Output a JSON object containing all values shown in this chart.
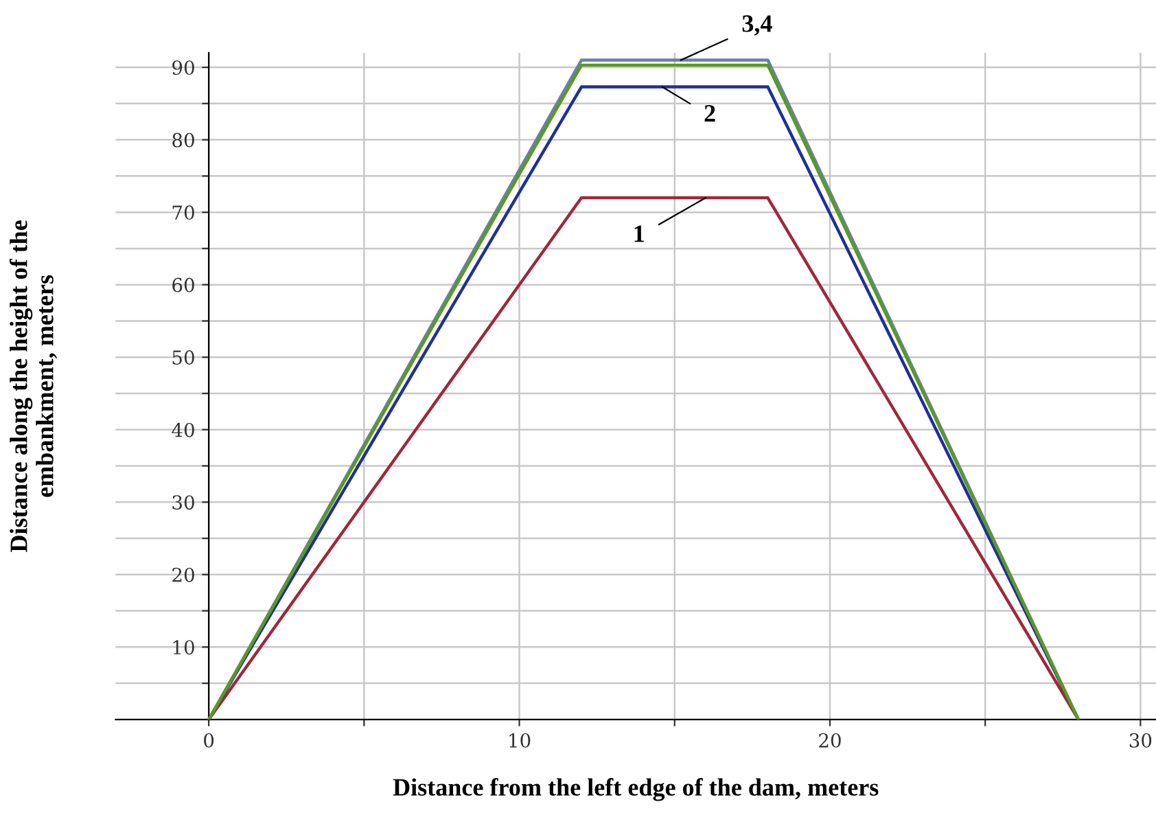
{
  "chart_data": {
    "type": "line",
    "xlabel": "Distance from the left edge of the dam, meters",
    "ylabel": "Distance along the height of the\nembankment, meters",
    "x": [
      0,
      12,
      18,
      28
    ],
    "series": [
      {
        "color": "#a0283a",
        "values": [
          0,
          72,
          72,
          0
        ]
      },
      {
        "color": "#1f2f9a",
        "values": [
          0,
          87.3,
          87.3,
          0
        ]
      },
      {
        "color": "#6a80a8",
        "values": [
          0,
          91,
          91,
          0
        ]
      },
      {
        "color": "#5a9a20",
        "values": [
          0,
          90.3,
          90.3,
          0
        ]
      }
    ],
    "xlim": [
      -3,
      30.5
    ],
    "ylim": [
      0,
      92
    ],
    "xticks": [
      0,
      {
        "value": 5,
        "label": null
      },
      10,
      {
        "value": 15,
        "label": null
      },
      20,
      {
        "value": 25,
        "label": null
      },
      30
    ],
    "yticks": [
      {
        "value": 5,
        "label": null
      },
      10,
      {
        "value": 15,
        "label": null
      },
      20,
      {
        "value": 25,
        "label": null
      },
      30,
      {
        "value": 35,
        "label": null
      },
      40,
      {
        "value": 45,
        "label": null
      },
      50,
      {
        "value": 55,
        "label": null
      },
      60,
      {
        "value": 65,
        "label": null
      },
      70,
      {
        "value": 75,
        "label": null
      },
      80,
      {
        "value": 85,
        "label": null
      },
      90
    ],
    "grid": true,
    "marker": "none",
    "line_style": "solid",
    "annotations": [
      {
        "text": "3,4",
        "x": 15.2,
        "y": 91
      },
      {
        "text": "2",
        "x": 14.6,
        "y": 87.3
      },
      {
        "text": "1",
        "x": 16,
        "y": 72
      }
    ]
  }
}
